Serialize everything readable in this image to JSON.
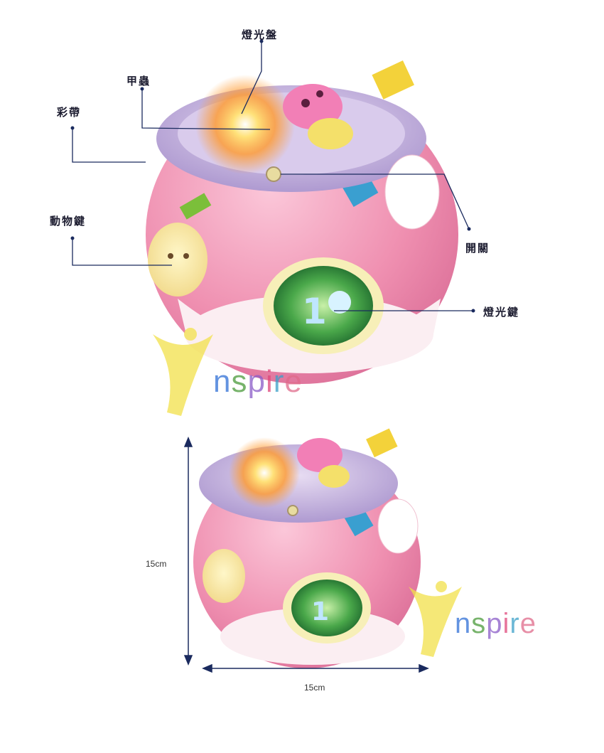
{
  "callouts": {
    "light_plate": "燈光盤",
    "beetle": "甲蟲",
    "ribbon": "彩帶",
    "animal_key": "動物鍵",
    "switch": "開關",
    "light_key": "燈光鍵"
  },
  "dimensions": {
    "height": "15cm",
    "width": "15cm"
  },
  "watermark": {
    "letters": [
      "n",
      "s",
      "p",
      "i",
      "r",
      "e"
    ],
    "colors": [
      "#2f6fd6",
      "#4a9a3a",
      "#8a5cc8",
      "#e0467a",
      "#3aa0c8",
      "#e06a8a"
    ],
    "mark_color": "#f2e04a"
  },
  "colors": {
    "ball_pink": "#ef8fb0",
    "ball_white": "#fbeef2",
    "lid_lilac": "#b9a3d8",
    "screen_green": "#4aa84a",
    "callout_line": "#1a2a5e"
  }
}
